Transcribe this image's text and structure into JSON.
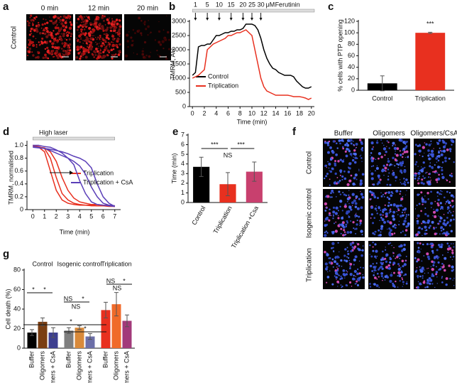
{
  "image_panel_a": {
    "label": "a",
    "columns": [
      "0 min",
      "12 min",
      "20 min"
    ],
    "rows": [
      "Control"
    ]
  },
  "image_panel_f": {
    "label": "f",
    "columns": [
      "Buffer",
      "Oligomers",
      "Oligomers/CsA"
    ],
    "rows": [
      "Control",
      "Isogenic control",
      "Triplication"
    ]
  },
  "chart_data": [
    {
      "label": "b",
      "type": "line",
      "y_label": "TMRM, AU",
      "x_label": "Time (min)",
      "doses": [
        "1",
        "5",
        "10",
        "15",
        "20",
        "25",
        "30"
      ],
      "dose_times": [
        0.5,
        2.5,
        4.5,
        6.5,
        8.5,
        10,
        11.5
      ],
      "dose_unit": "μM",
      "drug": "Ferutinin",
      "x": [
        0,
        0.5,
        1,
        1.5,
        2,
        2.5,
        3,
        3.5,
        4,
        4.5,
        5,
        5.5,
        6,
        6.5,
        7,
        7.5,
        8,
        8.5,
        9,
        9.5,
        10,
        10.5,
        11,
        11.5,
        12,
        12.5,
        13,
        13.5,
        14,
        14.5,
        15,
        15.5,
        16,
        16.5,
        17,
        17.5,
        18,
        18.5,
        19,
        19.5,
        20
      ],
      "series": [
        {
          "name": "Control",
          "color": "#000000",
          "values": [
            1100,
            1200,
            2100,
            2150,
            2150,
            2200,
            2200,
            2350,
            2500,
            2500,
            2550,
            2600,
            2600,
            2650,
            2650,
            2700,
            2700,
            2750,
            2900,
            2900,
            2900,
            2850,
            2700,
            2400,
            2000,
            1700,
            1500,
            1350,
            1300,
            1200,
            1150,
            1100,
            1100,
            1100,
            1050,
            900,
            800,
            700,
            650,
            650,
            700
          ]
        },
        {
          "name": "Triplication",
          "color": "#e8301f",
          "values": [
            1000,
            1050,
            1100,
            1200,
            1300,
            2000,
            2100,
            2200,
            2250,
            2300,
            2350,
            2400,
            2500,
            2500,
            2550,
            2600,
            2600,
            2650,
            2700,
            2600,
            2500,
            2000,
            1500,
            1000,
            700,
            550,
            500,
            450,
            400,
            400,
            400,
            400,
            400,
            380,
            350,
            350,
            350,
            330,
            300,
            250,
            300
          ]
        }
      ],
      "xlim": [
        -0.5,
        20.5
      ],
      "xticks": [
        0,
        2,
        4,
        6,
        8,
        10,
        12,
        14,
        16,
        18,
        20
      ],
      "ylim": [
        0,
        3000
      ],
      "yticks": [
        0,
        500,
        1000,
        1500,
        2000,
        2500,
        3000
      ]
    },
    {
      "label": "c",
      "type": "bar",
      "y_label": "% cells with PTP opening",
      "categories": [
        "Control",
        "Triplication"
      ],
      "values": [
        12,
        100
      ],
      "errors": [
        13,
        1
      ],
      "colors": [
        "#000000",
        "#e8301f"
      ],
      "annotations": [
        "***"
      ],
      "ylim": [
        0,
        120
      ],
      "yticks": [
        0,
        20,
        40,
        60,
        80,
        100,
        120
      ]
    },
    {
      "label": "d",
      "type": "line",
      "y_label": "TMRM, normalised",
      "x_label": "Time (min)",
      "annotations": [
        "High laser"
      ],
      "x": [
        0,
        0.5,
        1,
        1.5,
        2,
        2.5,
        3,
        3.5,
        4,
        4.5,
        5,
        5.5,
        6,
        6.5,
        7
      ],
      "series": [
        {
          "name": "Triplication",
          "color": "#e8301f",
          "values": [
            [
              1,
              0.97,
              0.9,
              0.6,
              0.3,
              0.15,
              0.1,
              0.08,
              0.07,
              0.07,
              0.06,
              0.06,
              0.06,
              0.05,
              0.05
            ],
            [
              1,
              0.98,
              0.95,
              0.8,
              0.5,
              0.25,
              0.15,
              0.1,
              0.08,
              0.07,
              0.07,
              0.06,
              0.06,
              0.06,
              0.05
            ],
            [
              0.98,
              0.97,
              0.96,
              0.9,
              0.75,
              0.5,
              0.3,
              0.18,
              0.12,
              0.1,
              0.08,
              0.08,
              0.07,
              0.07,
              0.06
            ]
          ]
        },
        {
          "name": "Triplication + CsA",
          "color": "#5b3fb8",
          "values": [
            [
              1,
              1,
              0.98,
              0.97,
              0.93,
              0.88,
              0.8,
              0.7,
              0.45,
              0.25,
              0.12,
              0.08,
              0.07,
              0.06,
              0.05
            ],
            [
              0.98,
              0.97,
              0.95,
              0.92,
              0.88,
              0.84,
              0.8,
              0.75,
              0.68,
              0.55,
              0.35,
              0.2,
              0.1,
              0.07,
              0.06
            ],
            [
              0.97,
              0.96,
              0.95,
              0.94,
              0.92,
              0.9,
              0.87,
              0.83,
              0.8,
              0.75,
              0.65,
              0.4,
              0.2,
              0.1,
              0.05
            ]
          ]
        }
      ],
      "xlim": [
        -0.5,
        7.5
      ],
      "xticks": [
        0,
        1,
        2,
        3,
        4,
        5,
        6,
        7
      ],
      "ylim": [
        0,
        1.05
      ],
      "yticks": [
        0,
        0.2,
        0.4,
        0.6,
        0.8,
        {
          "value": 1,
          "label": "1.0"
        }
      ]
    },
    {
      "label": "e",
      "type": "bar",
      "y_label": "Time (min)",
      "categories": [
        "Control",
        "Triplication",
        "Triplication +Csa"
      ],
      "values": [
        3.7,
        1.9,
        3.2
      ],
      "errors": [
        1.0,
        1.2,
        1.0
      ],
      "colors": [
        "#000000",
        "#e8301f",
        "#c8406e"
      ],
      "annotations": [
        "***",
        "NS",
        "***"
      ],
      "ylim": [
        0,
        7
      ],
      "yticks": [
        0,
        1,
        2,
        3,
        4,
        5,
        6,
        7
      ]
    },
    {
      "label": "g",
      "type": "bar",
      "y_label": "Cell death (%)",
      "categories": [
        "Control",
        "Isogenic control",
        "Triplication"
      ],
      "series": [
        {
          "name": "Buffer",
          "colors": [
            "#000000",
            "#7f7f7f",
            "#e8301f"
          ],
          "values": [
            16,
            18,
            39
          ],
          "errors": [
            3,
            3,
            8
          ]
        },
        {
          "name": "Oligomers",
          "colors": [
            "#7a3e12",
            "#d98a3a",
            "#f06a2a"
          ],
          "values": [
            27,
            21,
            45
          ],
          "errors": [
            4,
            2,
            12
          ]
        },
        {
          "name": "Oligomers + CsA",
          "colors": [
            "#3d3f8f",
            "#6c6fa8",
            "#a23a7a"
          ],
          "values": [
            16,
            12,
            28
          ],
          "errors": [
            5,
            3,
            6
          ]
        }
      ],
      "annotations": [
        "*",
        "*",
        "NS",
        "*",
        "NS",
        "*",
        "*",
        "NS",
        "*",
        "NS"
      ],
      "ylim": [
        0,
        80
      ],
      "yticks": [
        0,
        20,
        40,
        60,
        80
      ]
    }
  ]
}
